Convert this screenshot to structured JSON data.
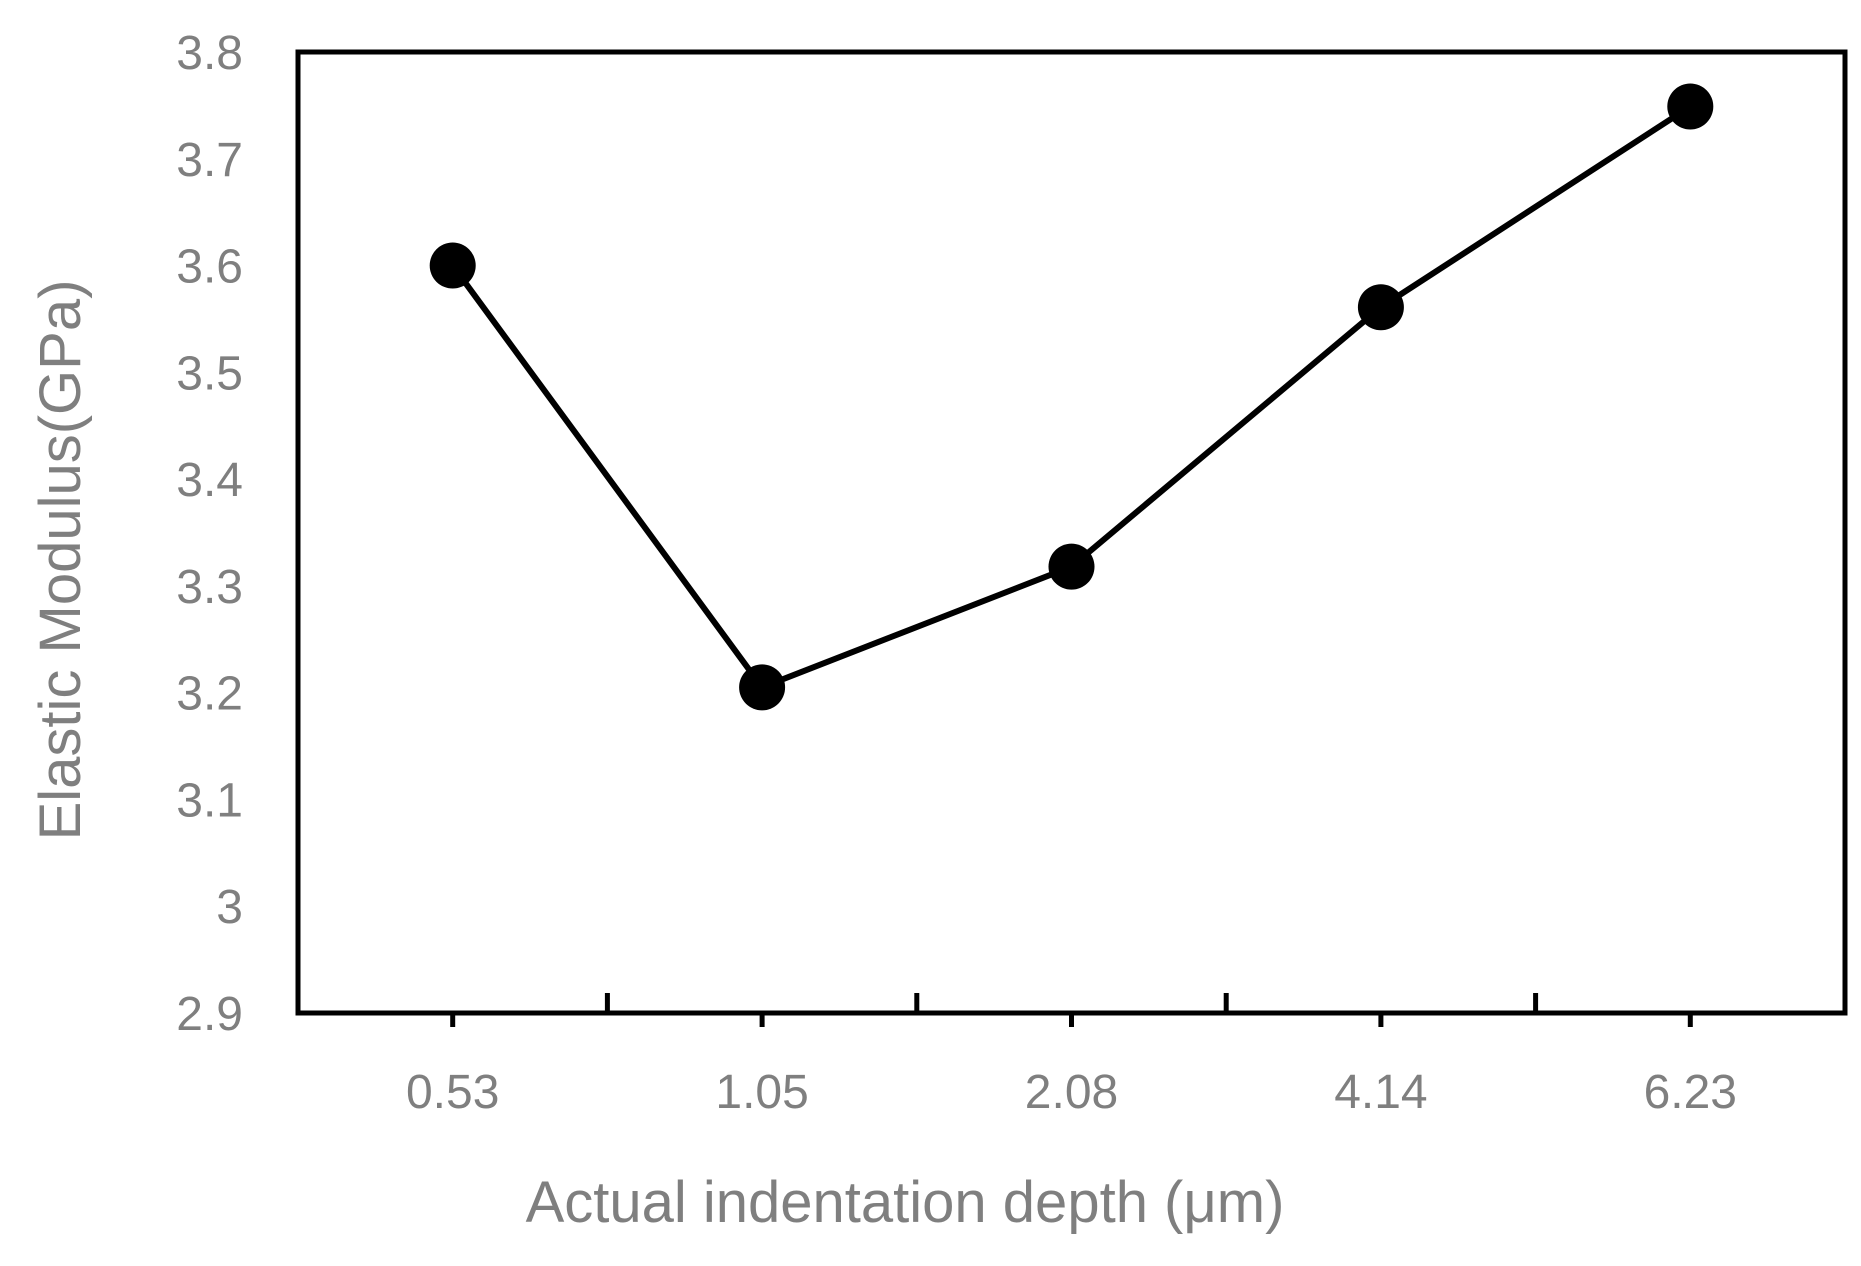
{
  "chart_data": {
    "type": "line",
    "title": "",
    "xlabel": "Actual indentation depth (μm)",
    "ylabel": "Elastic  Modulus(GPa)",
    "categories": [
      "0.53",
      "1.05",
      "2.08",
      "4.14",
      "6.23"
    ],
    "series": [
      {
        "values": [
          3.6,
          3.205,
          3.318,
          3.561,
          3.749
        ]
      }
    ],
    "ylim": [
      2.9,
      3.8
    ],
    "yticks": [
      "2.9",
      "3",
      "3.1",
      "3.2",
      "3.3",
      "3.4",
      "3.5",
      "3.6",
      "3.7",
      "3.8"
    ],
    "grid": false,
    "legend": "none",
    "colors": {
      "series": "#000000",
      "axis": "#000000",
      "text": "#7f7f7f"
    }
  }
}
